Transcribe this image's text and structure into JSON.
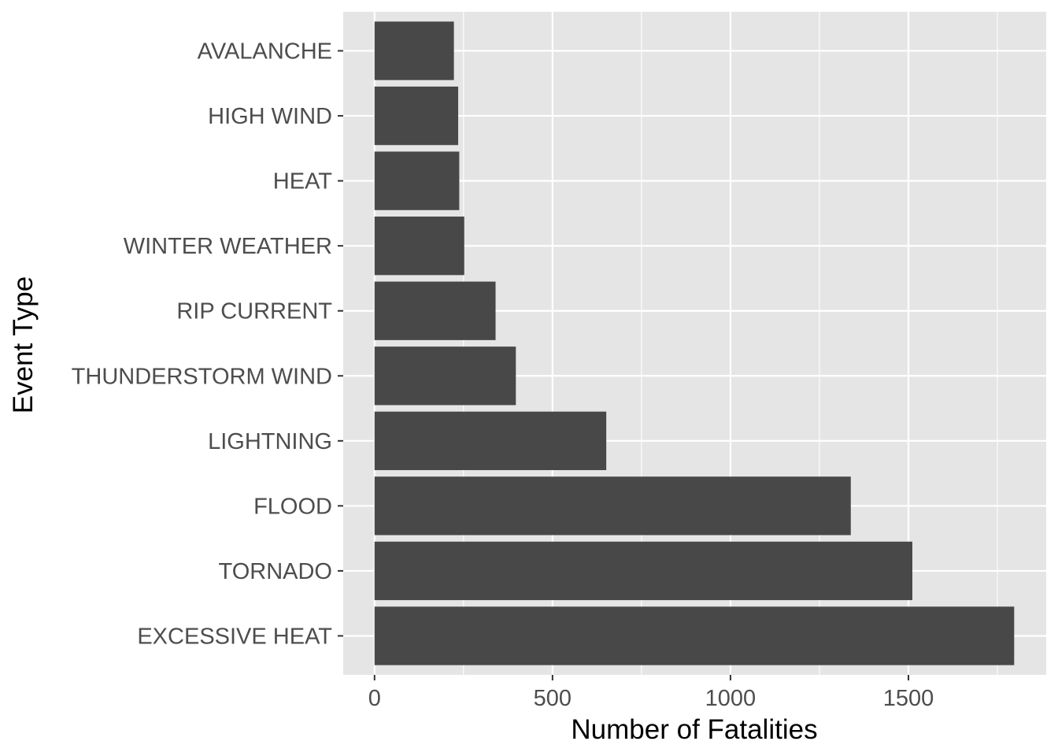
{
  "chart_data": {
    "type": "bar",
    "orientation": "horizontal",
    "title": "",
    "xlabel": "Number of Fatalities",
    "ylabel": "Event Type",
    "categories": [
      "EXCESSIVE HEAT",
      "TORNADO",
      "FLOOD",
      "LIGHTNING",
      "THUNDERSTORM WIND",
      "RIP CURRENT",
      "WINTER WEATHER",
      "HEAT",
      "HIGH WIND",
      "AVALANCHE"
    ],
    "values": [
      1797,
      1511,
      1338,
      651,
      397,
      340,
      252,
      238,
      235,
      223
    ],
    "xlim": [
      -88,
      1887
    ],
    "xticks": [
      0,
      500,
      1000,
      1500
    ],
    "xtick_labels": [
      "0",
      "500",
      "1000",
      "1500"
    ],
    "grid": true,
    "legend": "none",
    "colors": {
      "bar": "#484848",
      "panel": "#e5e5e5",
      "grid": "#ffffff",
      "tick": "#333333",
      "text": "#4d4d4d"
    }
  }
}
